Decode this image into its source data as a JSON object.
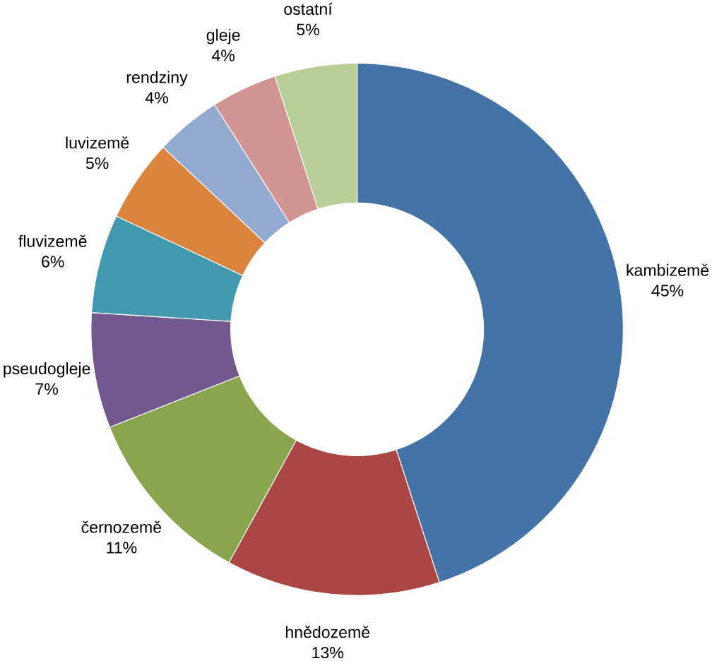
{
  "chart_data": {
    "type": "donut",
    "categories": [
      "kambizemě",
      "hnědozemě",
      "černozemě",
      "pseudogleje",
      "fluvizemě",
      "luvizemě",
      "rendziny",
      "gleje",
      "ostatní"
    ],
    "values": [
      45,
      13,
      11,
      7,
      6,
      5,
      4,
      4,
      5
    ],
    "colors": [
      "#4572a7",
      "#aa4643",
      "#89a54e",
      "#71588f",
      "#4198af",
      "#db843d",
      "#93a9cf",
      "#d09493",
      "#b9cd96"
    ],
    "value_labels": [
      "45%",
      "13%",
      "11%",
      "7%",
      "6%",
      "5%",
      "4%",
      "4%",
      "5%"
    ]
  }
}
